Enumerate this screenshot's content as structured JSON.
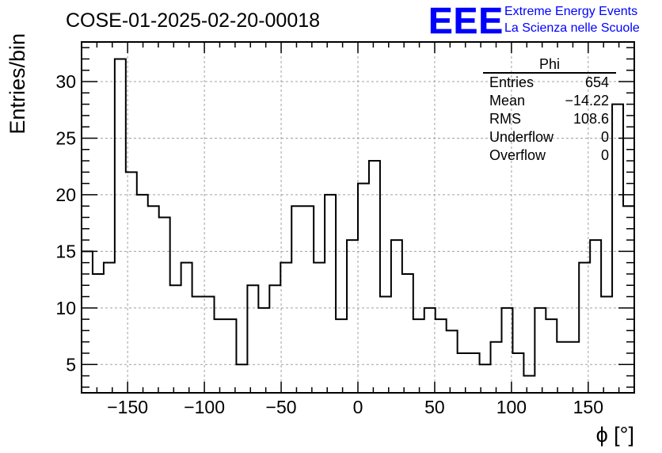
{
  "chart_data": {
    "type": "histogram",
    "title": "COSE-01-2025-02-20-00018",
    "xlabel": "ϕ [°]",
    "ylabel": "Entries/bin",
    "xlim": [
      -180,
      180
    ],
    "ylim": [
      2.5,
      33.5
    ],
    "grid": true,
    "x_ticks": [
      -150,
      -100,
      -50,
      0,
      50,
      100,
      150
    ],
    "x_tick_labels": [
      "−150",
      "−100",
      "−50",
      "0",
      "50",
      "100",
      "150"
    ],
    "y_ticks": [
      5,
      10,
      15,
      20,
      25,
      30
    ],
    "y_tick_labels": [
      "5",
      "10",
      "15",
      "20",
      "25",
      "30"
    ],
    "bin_edges_start": -180,
    "bin_width": 7.2,
    "values": [
      15,
      13,
      14,
      32,
      22,
      20,
      19,
      18,
      12,
      14,
      11,
      11,
      9,
      9,
      5,
      12,
      10,
      12,
      14,
      19,
      19,
      14,
      20,
      9,
      16,
      21,
      23,
      11,
      16,
      13,
      9,
      10,
      9,
      8,
      6,
      6,
      5,
      7,
      10,
      6,
      4,
      10,
      9,
      7,
      7,
      14,
      16,
      11,
      28,
      19
    ],
    "stats_box": {
      "name": "Phi",
      "rows": [
        {
          "label": "Entries",
          "value": "654"
        },
        {
          "label": "Mean",
          "value": "−14.22"
        },
        {
          "label": "RMS",
          "value": "108.6"
        },
        {
          "label": "Underflow",
          "value": "0"
        },
        {
          "label": "Overflow",
          "value": "0"
        }
      ]
    }
  },
  "logo": {
    "letters": "EEE",
    "line1": "Extreme Energy Events",
    "line2": "La Scienza nelle Scuole",
    "color": "#0000ff"
  }
}
